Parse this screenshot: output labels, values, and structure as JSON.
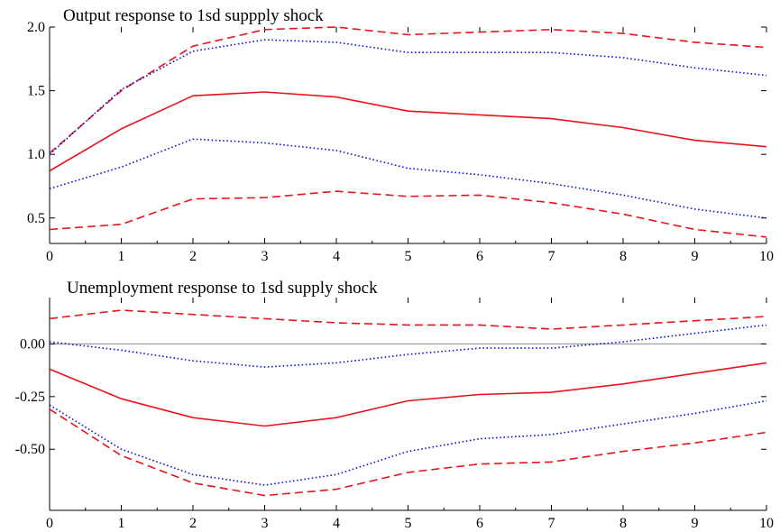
{
  "chart_data": [
    {
      "type": "line",
      "title": "Output response to 1sd suppply shock",
      "xlabel": "",
      "ylabel": "",
      "x": [
        0,
        1,
        2,
        3,
        4,
        5,
        6,
        7,
        8,
        9,
        10
      ],
      "xlim": [
        0,
        10
      ],
      "ylim": [
        0.3,
        2.0
      ],
      "xticks": [
        "0",
        "1",
        "2",
        "3",
        "4",
        "5",
        "6",
        "7",
        "8",
        "9",
        "10"
      ],
      "yticks": [
        "0.5",
        "1.0",
        "1.5",
        "2.0"
      ],
      "grid": false,
      "series": [
        {
          "key": "upper-band-2",
          "style": "dashed",
          "color": "#e8141c",
          "values": [
            1.01,
            1.5,
            1.85,
            1.98,
            2.0,
            1.94,
            1.96,
            1.98,
            1.95,
            1.88,
            1.84
          ]
        },
        {
          "key": "upper-band-1",
          "style": "dotted",
          "color": "#1414d2",
          "values": [
            1.0,
            1.51,
            1.81,
            1.9,
            1.88,
            1.8,
            1.8,
            1.8,
            1.76,
            1.68,
            1.62
          ]
        },
        {
          "key": "point-estimate",
          "style": "solid",
          "color": "#e8141c",
          "values": [
            0.87,
            1.2,
            1.46,
            1.49,
            1.45,
            1.34,
            1.31,
            1.28,
            1.21,
            1.11,
            1.06
          ]
        },
        {
          "key": "lower-band-1",
          "style": "dotted",
          "color": "#1414d2",
          "values": [
            0.73,
            0.9,
            1.12,
            1.09,
            1.03,
            0.89,
            0.84,
            0.77,
            0.68,
            0.57,
            0.5
          ]
        },
        {
          "key": "lower-band-2",
          "style": "dashed",
          "color": "#e8141c",
          "values": [
            0.41,
            0.45,
            0.65,
            0.66,
            0.71,
            0.67,
            0.68,
            0.62,
            0.53,
            0.41,
            0.35
          ]
        }
      ]
    },
    {
      "type": "line",
      "title": "Unemployment response to 1sd supply shock",
      "xlabel": "",
      "ylabel": "",
      "x": [
        0,
        1,
        2,
        3,
        4,
        5,
        6,
        7,
        8,
        9,
        10
      ],
      "xlim": [
        0,
        10
      ],
      "ylim": [
        -0.79,
        0.22
      ],
      "xticks": [
        "0",
        "1",
        "2",
        "3",
        "4",
        "5",
        "6",
        "7",
        "8",
        "9",
        "10"
      ],
      "yticks": [
        "0.00",
        "-0.25",
        "-0.50"
      ],
      "zero_line": true,
      "grid": false,
      "series": [
        {
          "key": "upper-band-2",
          "style": "dashed",
          "color": "#e8141c",
          "values": [
            0.12,
            0.16,
            0.14,
            0.12,
            0.1,
            0.09,
            0.09,
            0.07,
            0.09,
            0.11,
            0.13
          ]
        },
        {
          "key": "upper-band-1",
          "style": "dotted",
          "color": "#1414d2",
          "values": [
            0.01,
            -0.03,
            -0.08,
            -0.11,
            -0.09,
            -0.05,
            -0.02,
            -0.02,
            0.01,
            0.05,
            0.09
          ]
        },
        {
          "key": "point-estimate",
          "style": "solid",
          "color": "#e8141c",
          "values": [
            -0.12,
            -0.26,
            -0.35,
            -0.39,
            -0.35,
            -0.27,
            -0.24,
            -0.23,
            -0.19,
            -0.14,
            -0.09
          ]
        },
        {
          "key": "lower-band-1",
          "style": "dotted",
          "color": "#1414d2",
          "values": [
            -0.29,
            -0.5,
            -0.62,
            -0.67,
            -0.62,
            -0.51,
            -0.45,
            -0.43,
            -0.38,
            -0.33,
            -0.27
          ]
        },
        {
          "key": "lower-band-2",
          "style": "dashed",
          "color": "#e8141c",
          "values": [
            -0.31,
            -0.53,
            -0.66,
            -0.72,
            -0.69,
            -0.61,
            -0.57,
            -0.56,
            -0.51,
            -0.47,
            -0.42
          ]
        }
      ]
    }
  ]
}
